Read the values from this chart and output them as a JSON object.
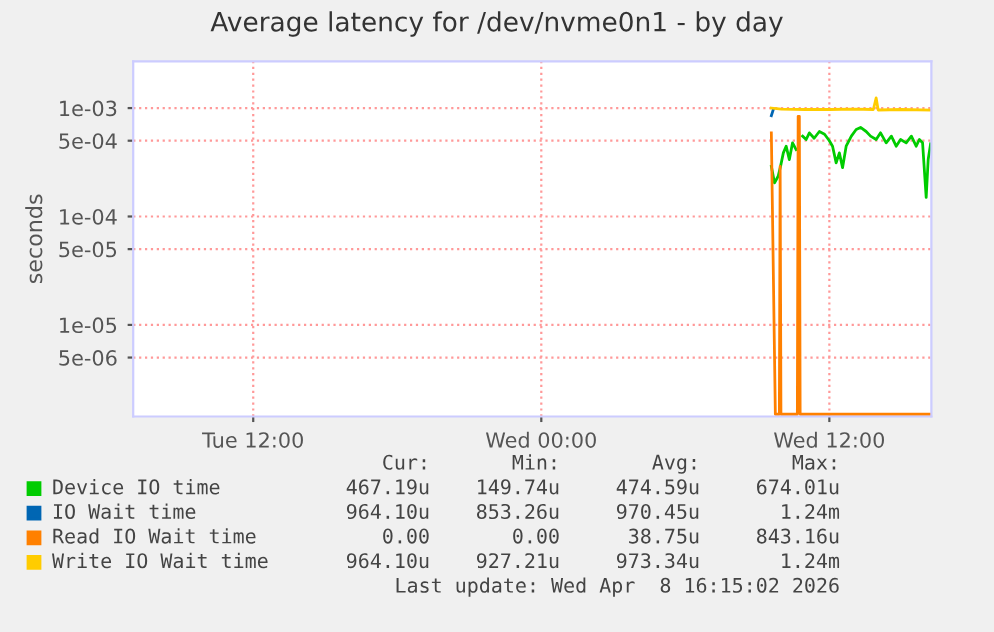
{
  "chart_data": {
    "type": "line",
    "title": "Average latency for /dev/nvme0n1 - by day",
    "ylabel": "seconds",
    "log": "y",
    "grid": true,
    "legend": "bottom",
    "xlim": [
      "2026-04-07T07:00",
      "2026-04-08T16:15"
    ],
    "xticks": [
      {
        "value": "2026-04-07T12:00",
        "label": "Tue 12:00"
      },
      {
        "value": "2026-04-08T00:00",
        "label": "Wed 00:00"
      },
      {
        "value": "2026-04-08T12:00",
        "label": "Wed 12:00"
      }
    ],
    "ylim": [
      1.43e-06,
      0.0027
    ],
    "yticks": [
      {
        "value": 0.001,
        "label": "1e-03"
      },
      {
        "value": 0.0005,
        "label": "5e-04"
      },
      {
        "value": 0.0001,
        "label": "1e-04"
      },
      {
        "value": 5e-05,
        "label": "5e-05"
      },
      {
        "value": 1e-05,
        "label": "1e-05"
      },
      {
        "value": 5e-06,
        "label": "5e-06"
      }
    ],
    "series": [
      {
        "name": "Device IO time",
        "color": "#00cc00",
        "x": [
          "2026-04-08T09:35",
          "2026-04-08T09:43",
          "2026-04-08T09:52",
          "2026-04-08T09:58",
          "2026-04-08T10:05",
          "2026-04-08T10:12",
          "2026-04-08T10:20",
          "2026-04-08T10:28",
          "2026-04-08T10:37",
          "2026-04-08T10:45",
          "2026-04-08T10:53",
          "2026-04-08T11:02",
          "2026-04-08T11:10",
          "2026-04-08T11:22",
          "2026-04-08T11:35",
          "2026-04-08T11:48",
          "2026-04-08T12:00",
          "2026-04-08T12:08",
          "2026-04-08T12:17",
          "2026-04-08T12:25",
          "2026-04-08T12:33",
          "2026-04-08T12:42",
          "2026-04-08T12:55",
          "2026-04-08T13:07",
          "2026-04-08T13:18",
          "2026-04-08T13:32",
          "2026-04-08T13:43",
          "2026-04-08T13:57",
          "2026-04-08T14:08",
          "2026-04-08T14:22",
          "2026-04-08T14:35",
          "2026-04-08T14:47",
          "2026-04-08T14:58",
          "2026-04-08T15:12",
          "2026-04-08T15:25",
          "2026-04-08T15:37",
          "2026-04-08T15:45",
          "2026-04-08T15:53",
          "2026-04-08T16:02",
          "2026-04-08T16:07",
          "2026-04-08T16:13"
        ],
        "values": [
          0.00029,
          0.000204,
          0.000235,
          0.00029,
          0.000386,
          0.000445,
          0.000335,
          0.000478,
          0.000414,
          null,
          0.000551,
          0.000513,
          0.000591,
          0.000527,
          0.000608,
          0.000574,
          0.000499,
          0.000445,
          0.000312,
          0.000386,
          0.000282,
          0.000445,
          0.000551,
          0.000634,
          0.000662,
          0.000608,
          0.000551,
          0.000513,
          0.000591,
          0.000478,
          0.000551,
          0.000445,
          0.000513,
          0.000478,
          0.000551,
          0.000445,
          0.000513,
          0.000478,
          0.00015,
          0.000335,
          0.000467
        ]
      },
      {
        "name": "IO Wait time",
        "color": "#0066b3",
        "x": [
          "2026-04-08T09:35",
          "2026-04-08T09:40"
        ],
        "values": [
          0.00085,
          0.00097
        ]
      },
      {
        "name": "Read IO Wait time",
        "color": "#ff8000",
        "x": [
          "2026-04-08T09:35",
          "2026-04-08T09:45",
          "2026-04-08T09:55",
          "2026-04-08T09:57",
          "2026-04-08T09:59",
          "2026-04-08T10:40",
          "2026-04-08T10:42",
          "2026-04-08T10:45",
          "2026-04-08T10:47",
          "2026-04-08T16:13"
        ],
        "values": [
          0.00059,
          1.5e-06,
          1.5e-06,
          0.00029,
          1.5e-06,
          1.5e-06,
          0.00084,
          0.00084,
          1.5e-06,
          1.5e-06
        ]
      },
      {
        "name": "Write IO Wait time",
        "color": "#ffcc00",
        "x": [
          "2026-04-08T09:35",
          "2026-04-08T10:00",
          "2026-04-08T11:00",
          "2026-04-08T12:00",
          "2026-04-08T13:00",
          "2026-04-08T13:50",
          "2026-04-08T13:57",
          "2026-04-08T14:02",
          "2026-04-08T15:00",
          "2026-04-08T16:13"
        ],
        "values": [
          0.001,
          0.00098,
          0.00097,
          0.00097,
          0.00098,
          0.00097,
          0.00124,
          0.00096,
          0.00097,
          0.00096
        ]
      }
    ],
    "annotations": [
      "Cur:",
      "Min:",
      "Avg:",
      "Max:",
      "467.19u",
      "149.74u",
      "474.59u",
      "674.01u",
      "964.10u",
      "853.26u",
      "970.45u",
      "1.24m",
      "0.00",
      "0.00",
      "38.75u",
      "843.16u",
      "964.10u",
      "927.21u",
      "973.34u",
      "1.24m",
      "Last update: Wed Apr  8 16:15:02 2026"
    ]
  }
}
